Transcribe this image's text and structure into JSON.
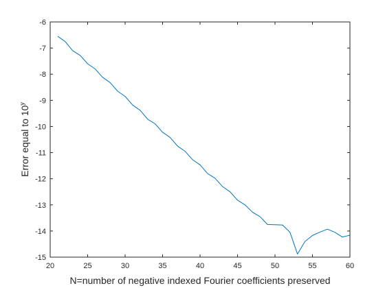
{
  "chart_data": {
    "type": "line",
    "xlabel": "N=number of negative indexed Fourier coefficients preserved",
    "ylabel_prefix": "Error equal to 10",
    "ylabel_superscript": "y",
    "xlim": [
      20,
      60
    ],
    "ylim": [
      -15,
      -6
    ],
    "xticks": [
      20,
      25,
      30,
      35,
      40,
      45,
      50,
      55,
      60
    ],
    "yticks": [
      -15,
      -14,
      -13,
      -12,
      -11,
      -10,
      -9,
      -8,
      -7,
      -6
    ],
    "grid": false,
    "line_color": "#0072BD",
    "series": [
      {
        "x": [
          21,
          22,
          23,
          24,
          25,
          26,
          27,
          28,
          29,
          30,
          31,
          32,
          33,
          34,
          35,
          36,
          37,
          38,
          39,
          40,
          41,
          42,
          43,
          44,
          45,
          46,
          47,
          48,
          49,
          50,
          51,
          52,
          53,
          54,
          55,
          56,
          57,
          58,
          59,
          60
        ],
        "y": [
          -6.55,
          -6.75,
          -7.1,
          -7.28,
          -7.6,
          -7.8,
          -8.12,
          -8.32,
          -8.65,
          -8.85,
          -9.18,
          -9.38,
          -9.72,
          -9.9,
          -10.22,
          -10.42,
          -10.75,
          -10.95,
          -11.27,
          -11.47,
          -11.8,
          -11.98,
          -12.3,
          -12.5,
          -12.82,
          -13.0,
          -13.28,
          -13.45,
          -13.75,
          -13.76,
          -13.77,
          -14.05,
          -14.88,
          -14.4,
          -14.17,
          -14.04,
          -13.93,
          -14.05,
          -14.23,
          -14.16
        ]
      }
    ]
  }
}
